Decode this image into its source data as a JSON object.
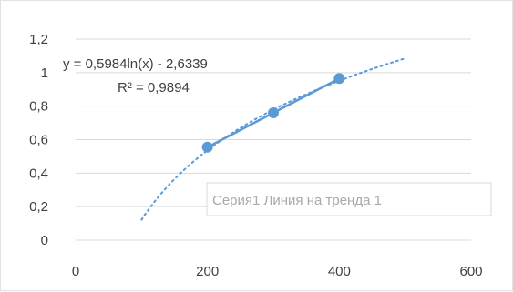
{
  "chart_data": {
    "type": "scatter",
    "xlim": [
      0,
      600
    ],
    "ylim": [
      0,
      1.2
    ],
    "x_ticks": [
      "0",
      "200",
      "400",
      "600"
    ],
    "y_ticks": [
      "0",
      "0,2",
      "0,4",
      "0,6",
      "0,8",
      "1",
      "1,2"
    ],
    "grid": "horizontal",
    "series": [
      {
        "color": "#5b9bd5",
        "points": [
          {
            "x": 200,
            "y": 0.555
          },
          {
            "x": 300,
            "y": 0.76
          },
          {
            "x": 400,
            "y": 0.965
          }
        ]
      }
    ],
    "trendline": {
      "kind": "logarithmic",
      "a": 0.5984,
      "b": -2.6339,
      "x_range": [
        100,
        500
      ],
      "color": "#5b9bd5",
      "equation": "y = 0,5984ln(x) - 2,6339",
      "r2": "R² = 0,9894"
    },
    "legend_tooltip": "Серия1 Линия на тренда 1"
  }
}
